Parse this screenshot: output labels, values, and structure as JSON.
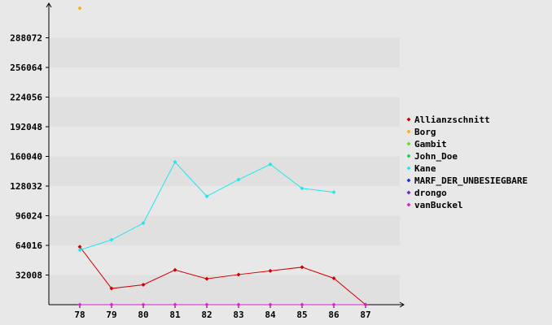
{
  "chart_data": {
    "type": "line",
    "x": [
      "78",
      "79",
      "80",
      "81",
      "82",
      "83",
      "84",
      "85",
      "86",
      "87"
    ],
    "yticks": [
      "32008",
      "64016",
      "96024",
      "128032",
      "160040",
      "192048",
      "224056",
      "256064",
      "288072"
    ],
    "ylim": [
      0,
      320080
    ],
    "grid": true,
    "legend_placement": "right",
    "series": [
      {
        "name": "Allianzschnitt",
        "color": "#d40000",
        "values": [
          62500,
          17500,
          21500,
          37500,
          28000,
          32500,
          36500,
          40500,
          28500,
          0
        ]
      },
      {
        "name": "Borg",
        "color": "#ffb000",
        "values": [
          320000,
          null,
          null,
          null,
          null,
          null,
          null,
          null,
          null,
          null
        ]
      },
      {
        "name": "Gambit",
        "color": "#66dd22",
        "values": [
          null,
          null,
          null,
          null,
          null,
          null,
          null,
          null,
          null,
          null
        ]
      },
      {
        "name": "John_Doe",
        "color": "#22cc55",
        "values": [
          null,
          null,
          null,
          null,
          null,
          null,
          null,
          null,
          null,
          null
        ]
      },
      {
        "name": "Kane",
        "color": "#22e6ee",
        "values": [
          59000,
          70000,
          88000,
          154000,
          117000,
          135000,
          151500,
          125500,
          121500,
          null
        ]
      },
      {
        "name": "MARF_DER_UNBESIEGBARE",
        "color": "#2233cc",
        "values": [
          null,
          null,
          null,
          null,
          null,
          null,
          null,
          null,
          null,
          null
        ]
      },
      {
        "name": "drongo",
        "color": "#7722cc",
        "values": [
          null,
          null,
          null,
          null,
          null,
          null,
          null,
          null,
          null,
          null
        ]
      },
      {
        "name": "vanBuckel",
        "color": "#dd22cc",
        "values": [
          0,
          0,
          0,
          0,
          0,
          0,
          0,
          0,
          0,
          0
        ]
      }
    ]
  }
}
